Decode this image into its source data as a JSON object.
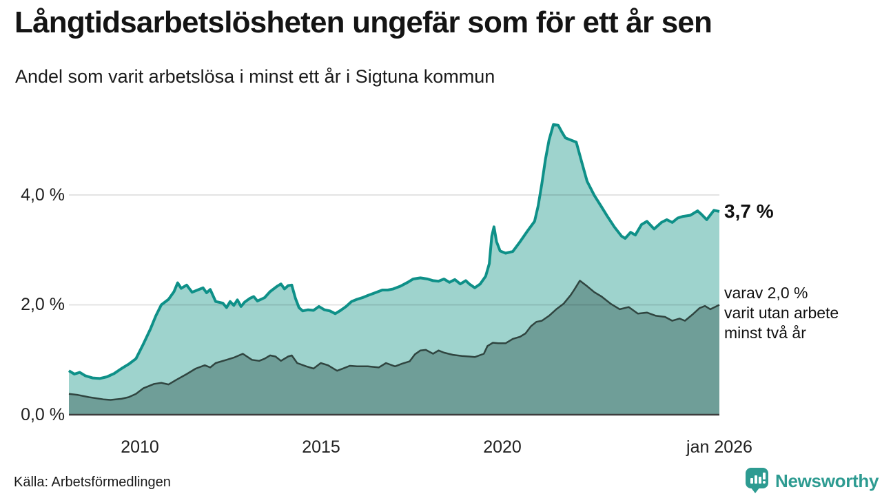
{
  "header": {
    "title": "Långtidsarbetslösheten ungefär som för ett år sen",
    "subtitle": "Andel som varit arbetslösa i minst ett år i Sigtuna kommun"
  },
  "chart_data": {
    "type": "area",
    "title": "Långtidsarbetslösheten ungefär som för ett år sen",
    "subtitle": "Andel som varit arbetslösa i minst ett år i Sigtuna kommun",
    "unit": "%",
    "grid": "horizontal",
    "legend_position": "right-annotations",
    "x_domain": [
      2008.05,
      2026.0
    ],
    "y_domain": [
      0,
      5.5
    ],
    "y_ticks": [
      {
        "value": 0,
        "label": "0,0 %"
      },
      {
        "value": 2,
        "label": "2,0 %"
      },
      {
        "value": 4,
        "label": "4,0 %"
      }
    ],
    "x_ticks": [
      {
        "value": 2010,
        "label": "2010"
      },
      {
        "value": 2015,
        "label": "2015"
      },
      {
        "value": 2020,
        "label": "2020"
      },
      {
        "value": 2026,
        "label": "jan 2026"
      }
    ],
    "annotations": [
      {
        "text": "3,7 %",
        "role": "latest-value-total"
      },
      {
        "text": "varav 2,0 %\nvarit utan arbete\nminst två år",
        "role": "latest-value-two-years"
      }
    ],
    "colors": {
      "line_total": "#0e9088",
      "fill_total": "#9ed3cd",
      "line_two_years": "#304540",
      "fill_two_years": "#6f9e98",
      "gridline": "rgba(0,0,0,0.11)",
      "baseline": "#3d3d3d"
    },
    "series": [
      {
        "name": "Arbetslösa minst ett år",
        "end_value": 3.7,
        "points": [
          [
            2008.05,
            0.8
          ],
          [
            2008.2,
            0.74
          ],
          [
            2008.35,
            0.77
          ],
          [
            2008.5,
            0.71
          ],
          [
            2008.7,
            0.67
          ],
          [
            2008.9,
            0.66
          ],
          [
            2009.1,
            0.69
          ],
          [
            2009.3,
            0.75
          ],
          [
            2009.5,
            0.84
          ],
          [
            2009.7,
            0.92
          ],
          [
            2009.9,
            1.02
          ],
          [
            2010.1,
            1.28
          ],
          [
            2010.3,
            1.56
          ],
          [
            2010.45,
            1.8
          ],
          [
            2010.6,
            2.0
          ],
          [
            2010.8,
            2.1
          ],
          [
            2010.95,
            2.24
          ],
          [
            2011.05,
            2.4
          ],
          [
            2011.15,
            2.3
          ],
          [
            2011.3,
            2.36
          ],
          [
            2011.45,
            2.23
          ],
          [
            2011.6,
            2.27
          ],
          [
            2011.75,
            2.31
          ],
          [
            2011.85,
            2.22
          ],
          [
            2011.95,
            2.28
          ],
          [
            2012.1,
            2.06
          ],
          [
            2012.3,
            2.03
          ],
          [
            2012.4,
            1.95
          ],
          [
            2012.5,
            2.06
          ],
          [
            2012.6,
            1.99
          ],
          [
            2012.7,
            2.09
          ],
          [
            2012.8,
            1.97
          ],
          [
            2012.9,
            2.05
          ],
          [
            2013.05,
            2.12
          ],
          [
            2013.15,
            2.15
          ],
          [
            2013.25,
            2.07
          ],
          [
            2013.45,
            2.13
          ],
          [
            2013.6,
            2.24
          ],
          [
            2013.8,
            2.34
          ],
          [
            2013.9,
            2.38
          ],
          [
            2014.0,
            2.29
          ],
          [
            2014.1,
            2.35
          ],
          [
            2014.2,
            2.36
          ],
          [
            2014.3,
            2.12
          ],
          [
            2014.4,
            1.95
          ],
          [
            2014.5,
            1.89
          ],
          [
            2014.65,
            1.91
          ],
          [
            2014.8,
            1.9
          ],
          [
            2014.95,
            1.97
          ],
          [
            2015.1,
            1.91
          ],
          [
            2015.25,
            1.89
          ],
          [
            2015.4,
            1.84
          ],
          [
            2015.55,
            1.9
          ],
          [
            2015.7,
            1.97
          ],
          [
            2015.85,
            2.06
          ],
          [
            2016.0,
            2.1
          ],
          [
            2016.15,
            2.13
          ],
          [
            2016.3,
            2.17
          ],
          [
            2016.5,
            2.22
          ],
          [
            2016.7,
            2.27
          ],
          [
            2016.85,
            2.27
          ],
          [
            2017.0,
            2.29
          ],
          [
            2017.2,
            2.34
          ],
          [
            2017.4,
            2.41
          ],
          [
            2017.55,
            2.47
          ],
          [
            2017.75,
            2.49
          ],
          [
            2017.95,
            2.47
          ],
          [
            2018.1,
            2.44
          ],
          [
            2018.25,
            2.43
          ],
          [
            2018.4,
            2.47
          ],
          [
            2018.55,
            2.41
          ],
          [
            2018.7,
            2.46
          ],
          [
            2018.85,
            2.38
          ],
          [
            2019.0,
            2.44
          ],
          [
            2019.1,
            2.38
          ],
          [
            2019.25,
            2.31
          ],
          [
            2019.4,
            2.38
          ],
          [
            2019.55,
            2.52
          ],
          [
            2019.65,
            2.75
          ],
          [
            2019.72,
            3.25
          ],
          [
            2019.78,
            3.42
          ],
          [
            2019.85,
            3.15
          ],
          [
            2019.95,
            2.98
          ],
          [
            2020.1,
            2.94
          ],
          [
            2020.3,
            2.97
          ],
          [
            2020.5,
            3.15
          ],
          [
            2020.7,
            3.34
          ],
          [
            2020.9,
            3.52
          ],
          [
            2021.0,
            3.8
          ],
          [
            2021.1,
            4.2
          ],
          [
            2021.2,
            4.65
          ],
          [
            2021.3,
            5.0
          ],
          [
            2021.42,
            5.28
          ],
          [
            2021.55,
            5.27
          ],
          [
            2021.65,
            5.15
          ],
          [
            2021.75,
            5.04
          ],
          [
            2021.9,
            5.0
          ],
          [
            2022.05,
            4.96
          ],
          [
            2022.2,
            4.6
          ],
          [
            2022.35,
            4.25
          ],
          [
            2022.55,
            3.99
          ],
          [
            2022.75,
            3.78
          ],
          [
            2022.9,
            3.62
          ],
          [
            2023.1,
            3.42
          ],
          [
            2023.3,
            3.25
          ],
          [
            2023.4,
            3.21
          ],
          [
            2023.55,
            3.32
          ],
          [
            2023.68,
            3.27
          ],
          [
            2023.85,
            3.46
          ],
          [
            2024.0,
            3.52
          ],
          [
            2024.2,
            3.38
          ],
          [
            2024.4,
            3.5
          ],
          [
            2024.55,
            3.55
          ],
          [
            2024.7,
            3.5
          ],
          [
            2024.85,
            3.58
          ],
          [
            2025.0,
            3.61
          ],
          [
            2025.2,
            3.63
          ],
          [
            2025.4,
            3.71
          ],
          [
            2025.5,
            3.65
          ],
          [
            2025.65,
            3.55
          ],
          [
            2025.85,
            3.72
          ],
          [
            2026.0,
            3.7
          ]
        ]
      },
      {
        "name": "varav utan arbete minst två år",
        "end_value": 2.0,
        "points": [
          [
            2008.05,
            0.38
          ],
          [
            2008.3,
            0.36
          ],
          [
            2008.6,
            0.32
          ],
          [
            2009.0,
            0.28
          ],
          [
            2009.2,
            0.27
          ],
          [
            2009.5,
            0.29
          ],
          [
            2009.7,
            0.32
          ],
          [
            2009.9,
            0.38
          ],
          [
            2010.1,
            0.48
          ],
          [
            2010.4,
            0.56
          ],
          [
            2010.6,
            0.58
          ],
          [
            2010.8,
            0.55
          ],
          [
            2011.0,
            0.63
          ],
          [
            2011.3,
            0.74
          ],
          [
            2011.55,
            0.84
          ],
          [
            2011.8,
            0.9
          ],
          [
            2011.95,
            0.86
          ],
          [
            2012.1,
            0.94
          ],
          [
            2012.4,
            1.0
          ],
          [
            2012.6,
            1.04
          ],
          [
            2012.85,
            1.11
          ],
          [
            2013.1,
            1.0
          ],
          [
            2013.3,
            0.98
          ],
          [
            2013.45,
            1.02
          ],
          [
            2013.6,
            1.08
          ],
          [
            2013.75,
            1.06
          ],
          [
            2013.9,
            0.98
          ],
          [
            2014.1,
            1.06
          ],
          [
            2014.2,
            1.08
          ],
          [
            2014.35,
            0.94
          ],
          [
            2014.6,
            0.88
          ],
          [
            2014.8,
            0.84
          ],
          [
            2015.0,
            0.94
          ],
          [
            2015.2,
            0.9
          ],
          [
            2015.45,
            0.8
          ],
          [
            2015.65,
            0.85
          ],
          [
            2015.8,
            0.89
          ],
          [
            2016.0,
            0.88
          ],
          [
            2016.3,
            0.88
          ],
          [
            2016.6,
            0.86
          ],
          [
            2016.8,
            0.94
          ],
          [
            2017.05,
            0.88
          ],
          [
            2017.25,
            0.93
          ],
          [
            2017.45,
            0.97
          ],
          [
            2017.6,
            1.1
          ],
          [
            2017.75,
            1.17
          ],
          [
            2017.9,
            1.18
          ],
          [
            2018.1,
            1.11
          ],
          [
            2018.25,
            1.17
          ],
          [
            2018.4,
            1.13
          ],
          [
            2018.65,
            1.09
          ],
          [
            2018.9,
            1.07
          ],
          [
            2019.1,
            1.06
          ],
          [
            2019.25,
            1.05
          ],
          [
            2019.5,
            1.11
          ],
          [
            2019.6,
            1.25
          ],
          [
            2019.75,
            1.31
          ],
          [
            2019.9,
            1.3
          ],
          [
            2020.1,
            1.3
          ],
          [
            2020.3,
            1.38
          ],
          [
            2020.5,
            1.42
          ],
          [
            2020.65,
            1.48
          ],
          [
            2020.8,
            1.61
          ],
          [
            2020.95,
            1.69
          ],
          [
            2021.1,
            1.71
          ],
          [
            2021.3,
            1.8
          ],
          [
            2021.5,
            1.92
          ],
          [
            2021.7,
            2.02
          ],
          [
            2021.9,
            2.18
          ],
          [
            2022.0,
            2.28
          ],
          [
            2022.15,
            2.44
          ],
          [
            2022.35,
            2.34
          ],
          [
            2022.55,
            2.23
          ],
          [
            2022.75,
            2.15
          ],
          [
            2023.0,
            2.02
          ],
          [
            2023.25,
            1.92
          ],
          [
            2023.5,
            1.96
          ],
          [
            2023.75,
            1.84
          ],
          [
            2024.0,
            1.86
          ],
          [
            2024.25,
            1.8
          ],
          [
            2024.5,
            1.78
          ],
          [
            2024.7,
            1.71
          ],
          [
            2024.9,
            1.75
          ],
          [
            2025.05,
            1.71
          ],
          [
            2025.25,
            1.82
          ],
          [
            2025.45,
            1.94
          ],
          [
            2025.6,
            1.98
          ],
          [
            2025.75,
            1.92
          ],
          [
            2026.0,
            2.0
          ]
        ]
      }
    ]
  },
  "footer": {
    "source": "Källa: Arbetsförmedlingen",
    "logo_text": "Newsworthy"
  }
}
